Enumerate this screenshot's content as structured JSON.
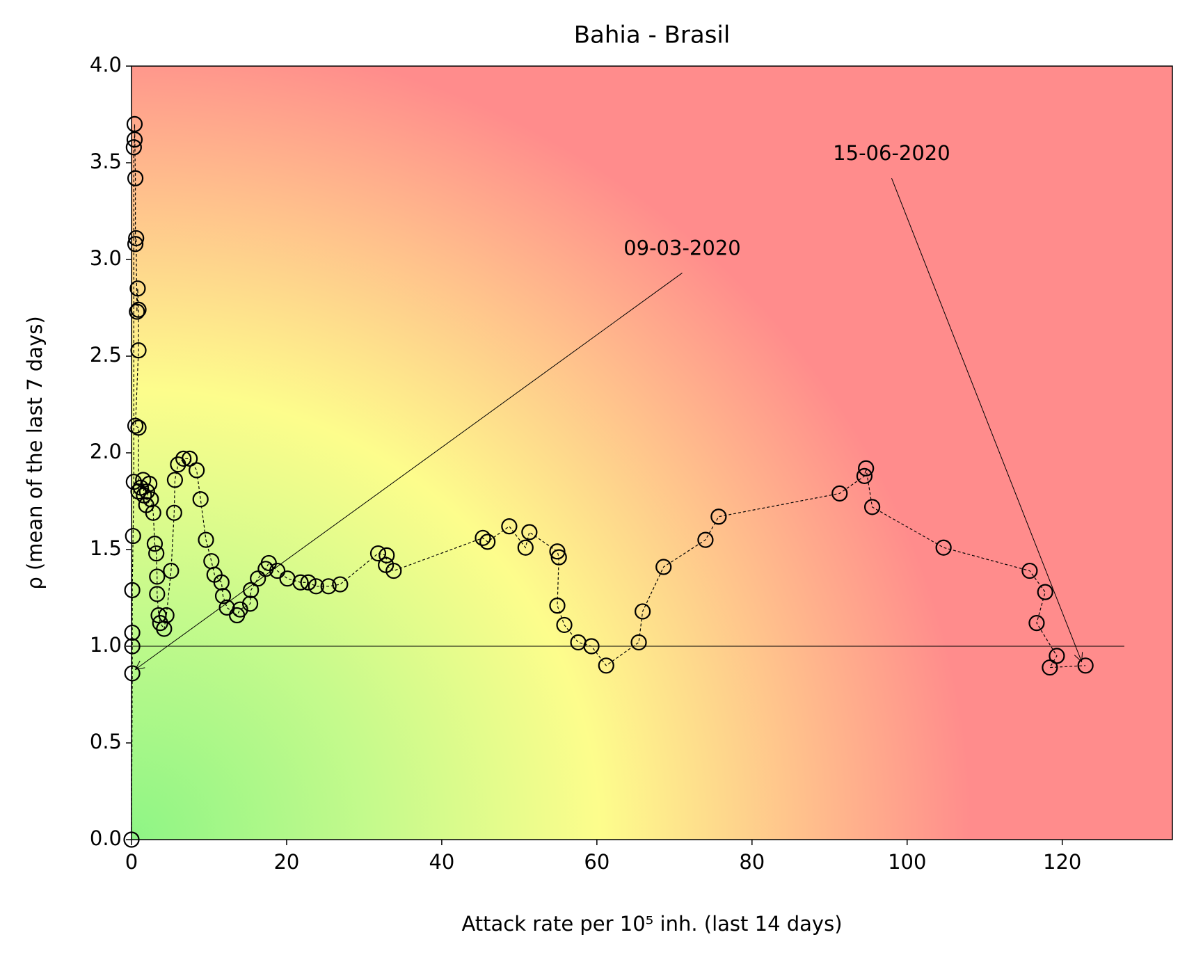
{
  "chart_data": {
    "type": "scatter",
    "title": "Bahia - Brasil",
    "xlabel": "Attack rate per 10⁵ inh. (last 14 days)",
    "ylabel": "ρ (mean of the last 7 days)",
    "xlim": [
      0,
      134.2
    ],
    "ylim": [
      0,
      4
    ],
    "xticks": [
      0,
      20,
      40,
      60,
      80,
      100,
      120
    ],
    "yticks": [
      {
        "value": 0,
        "label": "0.0"
      },
      {
        "value": 0.5,
        "label": "0.5"
      },
      {
        "value": 1,
        "label": "1.0"
      },
      {
        "value": 1.5,
        "label": "1.5"
      },
      {
        "value": 2,
        "label": "2.0"
      },
      {
        "value": 2.5,
        "label": "2.5"
      },
      {
        "value": 3,
        "label": "3.0"
      },
      {
        "value": 3.5,
        "label": "3.5"
      },
      {
        "value": 4,
        "label": "4.0"
      }
    ],
    "marker_color": "#000000",
    "line_style": "dashed",
    "x": [
      0,
      0.1,
      0.1,
      0.1,
      0.1,
      0.2,
      0.3,
      0.3,
      0.4,
      0.4,
      0.5,
      0.5,
      0.6,
      0.7,
      0.8,
      0.9,
      0.9,
      0.5,
      0.9,
      0.9,
      1.2,
      1.5,
      1.6,
      2.0,
      2.3,
      1.9,
      2.5,
      2.8,
      3.0,
      3.2,
      3.3,
      3.3,
      3.5,
      3.7,
      4.2,
      4.5,
      5.1,
      5.5,
      5.6,
      6.0,
      6.7,
      7.5,
      8.4,
      8.9,
      9.6,
      10.3,
      10.7,
      11.6,
      11.8,
      12.3,
      13.6,
      14.0,
      15.3,
      15.4,
      16.3,
      17.3,
      17.7,
      18.8,
      20.1,
      21.8,
      22.8,
      23.8,
      25.4,
      26.9,
      31.8,
      32.9,
      32.8,
      33.8,
      45.3,
      45.9,
      48.7,
      50.8,
      51.3,
      54.9,
      55.1,
      54.9,
      55.8,
      57.6,
      59.3,
      61.2,
      65.4,
      65.9,
      68.6,
      74.0,
      75.7,
      91.3,
      94.5,
      94.7,
      95.5,
      104.7,
      115.8,
      117.8,
      116.7,
      119.3,
      118.4,
      123.0
    ],
    "values": [
      0,
      0.86,
      1.0,
      1.07,
      1.29,
      1.57,
      1.85,
      3.58,
      3.62,
      3.7,
      3.42,
      3.08,
      3.11,
      2.73,
      2.85,
      2.74,
      2.53,
      2.14,
      2.13,
      1.8,
      1.82,
      1.86,
      1.78,
      1.8,
      1.84,
      1.73,
      1.76,
      1.69,
      1.53,
      1.48,
      1.36,
      1.27,
      1.16,
      1.12,
      1.09,
      1.16,
      1.39,
      1.69,
      1.86,
      1.94,
      1.97,
      1.97,
      1.91,
      1.76,
      1.55,
      1.44,
      1.37,
      1.33,
      1.26,
      1.2,
      1.16,
      1.19,
      1.22,
      1.29,
      1.35,
      1.4,
      1.43,
      1.39,
      1.35,
      1.33,
      1.33,
      1.31,
      1.31,
      1.32,
      1.48,
      1.47,
      1.42,
      1.39,
      1.56,
      1.54,
      1.62,
      1.51,
      1.59,
      1.49,
      1.46,
      1.21,
      1.11,
      1.02,
      1.0,
      0.9,
      1.02,
      1.18,
      1.41,
      1.55,
      1.67,
      1.79,
      1.88,
      1.92,
      1.72,
      1.51,
      1.39,
      1.28,
      1.12,
      0.95,
      0.89,
      0.9
    ],
    "reference_line": {
      "y": 1,
      "x": [
        0,
        128
      ]
    },
    "annotations": [
      {
        "text": "09-03-2020",
        "xy": [
          0.5,
          0.88
        ],
        "xytext": [
          71,
          2.93
        ]
      },
      {
        "text": "15-06-2020",
        "xy": [
          122.5,
          0.92
        ],
        "xytext": [
          98,
          3.42
        ]
      }
    ]
  }
}
